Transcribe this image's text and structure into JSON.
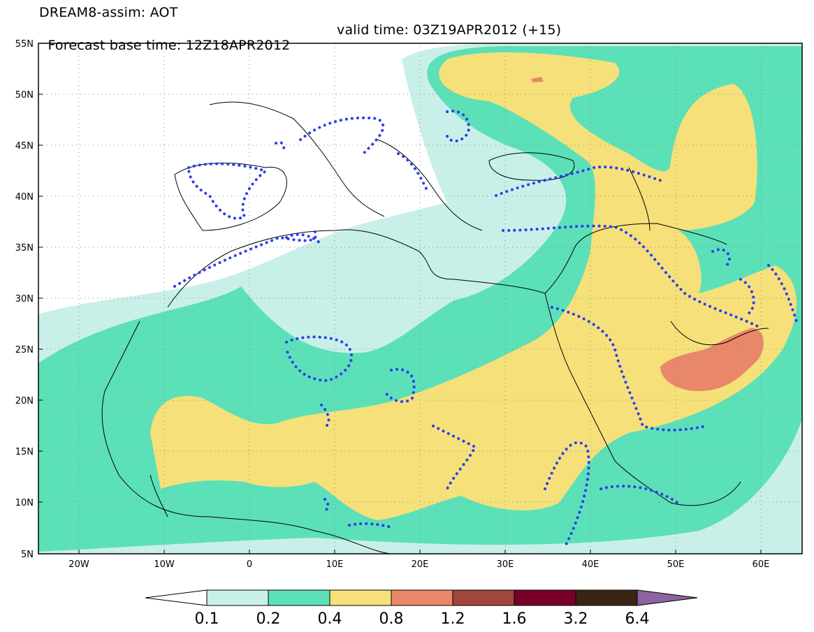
{
  "title": {
    "line1": "DREAM8-assim: AOT",
    "line2_base": "Forecast base time: 12Z18APR2012",
    "line2_valid": "valid time: 03Z19APR2012 (+15)"
  },
  "map": {
    "lon_range": [
      -25,
      65
    ],
    "lat_range": [
      5,
      55
    ],
    "lon_ticks": [
      "20W",
      "10W",
      "0",
      "10E",
      "20E",
      "30E",
      "40E",
      "50E",
      "60E"
    ],
    "lat_ticks": [
      "55N",
      "50N",
      "45N",
      "40N",
      "35N",
      "30N",
      "25N",
      "20N",
      "15N",
      "10N",
      "5N"
    ],
    "grid": "dotted"
  },
  "colorbar": {
    "labels": [
      "0.1",
      "0.2",
      "0.4",
      "0.8",
      "1.2",
      "1.6",
      "3.2",
      "6.4"
    ],
    "colors": {
      "below": "#ffffff",
      "c1": "#c8f0e8",
      "c2": "#5ce0b8",
      "c3": "#f5e07a",
      "c4": "#e8876a",
      "c5": "#a0463a",
      "c6": "#780028",
      "c7": "#3c2414",
      "above": "#8c64a0"
    }
  },
  "overlay": {
    "contour_color": "#2a3cf0",
    "style": "dotted"
  }
}
